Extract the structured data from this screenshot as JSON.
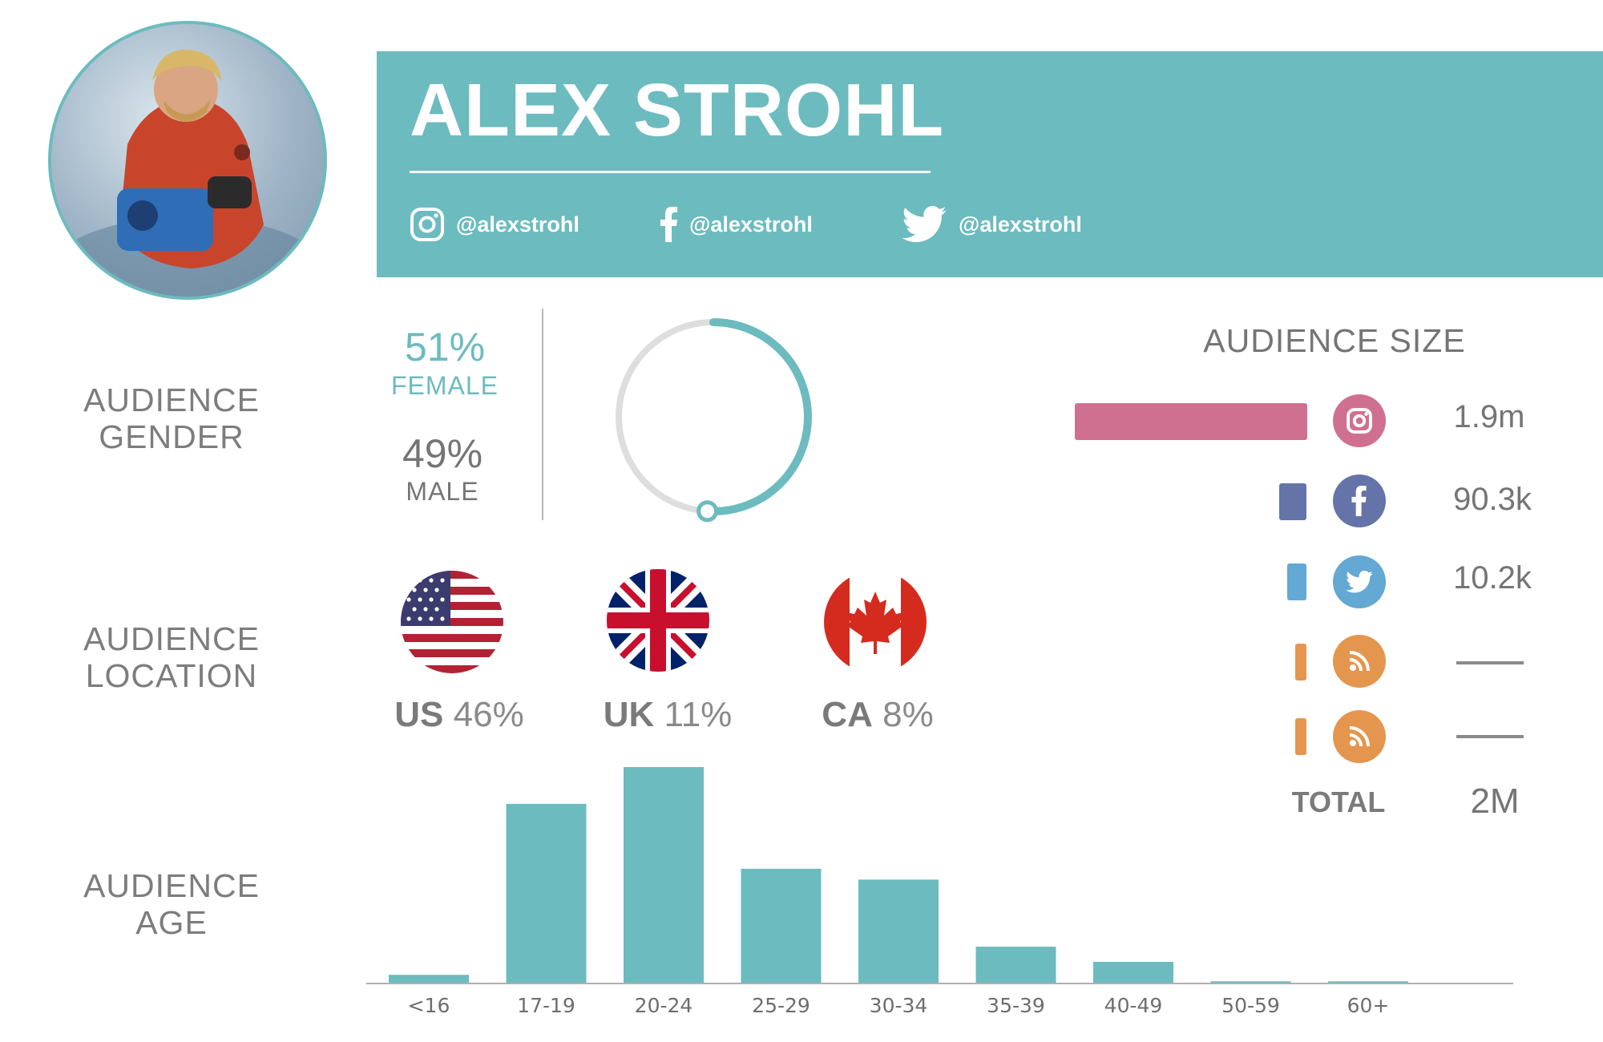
{
  "profile": {
    "name": "ALEX STROHL",
    "instagram_handle": "@alexstrohl",
    "facebook_handle": "@alexstrohl",
    "twitter_handle": "@alexstrohl"
  },
  "sections": {
    "gender_line1": "AUDIENCE",
    "gender_line2": "GENDER",
    "location_line1": "AUDIENCE",
    "location_line2": "LOCATION",
    "age_line1": "AUDIENCE",
    "age_line2": "AGE"
  },
  "gender": {
    "female_pct": "51%",
    "female_label": "FEMALE",
    "male_pct": "49%",
    "male_label": "MALE",
    "female_fraction": 0.51,
    "female_color": "#6cbbbf",
    "male_color": "#dedede"
  },
  "location": [
    {
      "code": "US",
      "pct": "46%",
      "flag": "us-flag"
    },
    {
      "code": "UK",
      "pct": "11%",
      "flag": "uk-flag"
    },
    {
      "code": "CA",
      "pct": "8%",
      "flag": "canada-flag"
    }
  ],
  "audience_size": {
    "title": "AUDIENCE SIZE",
    "rows": [
      {
        "network": "instagram",
        "icon": "instagram-icon",
        "value": "1.9m",
        "color": "#d07090"
      },
      {
        "network": "facebook",
        "icon": "facebook-icon",
        "value": "90.3k",
        "color": "#6474a8"
      },
      {
        "network": "twitter",
        "icon": "twitter-icon",
        "value": "10.2k",
        "color": "#64a8d4"
      },
      {
        "network": "rss",
        "icon": "rss-icon",
        "value": "",
        "color": "#e4964e"
      },
      {
        "network": "rss",
        "icon": "rss-icon",
        "value": "",
        "color": "#e4964e"
      }
    ],
    "total_label": "TOTAL",
    "total_value": "2M"
  },
  "chart_data": {
    "type": "bar",
    "categories": [
      "<16",
      "17-19",
      "20-24",
      "25-29",
      "30-34",
      "35-39",
      "40-49",
      "50-59",
      "60+"
    ],
    "values": [
      4,
      83,
      100,
      53,
      48,
      17,
      10,
      1,
      1
    ],
    "ylim": [
      0,
      100
    ],
    "grid": false,
    "color": "#6cbbbf"
  },
  "colors": {
    "accent": "#6cbbbf",
    "text_gray": "#757575"
  }
}
